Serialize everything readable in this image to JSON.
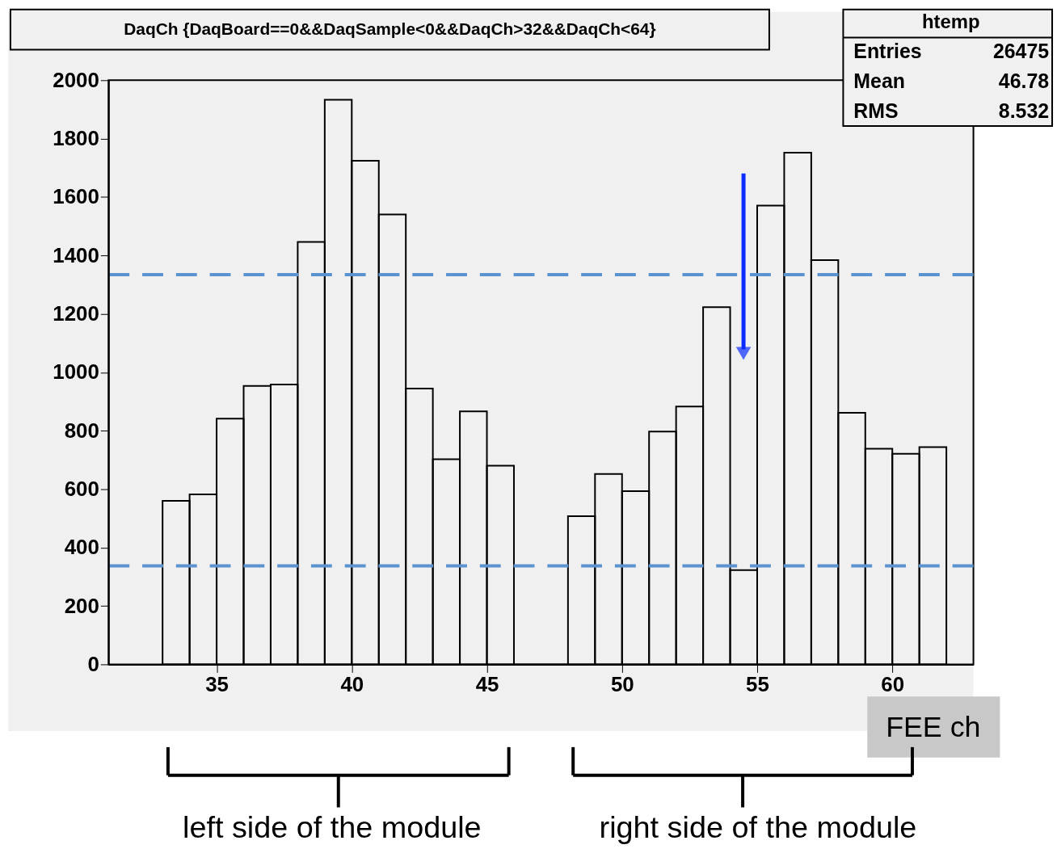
{
  "chart_data": {
    "type": "histogram",
    "title": "DaqCh {DaqBoard==0&&DaqSample<0&&DaqCh>32&&DaqCh<64}",
    "xlabel": "FEE ch",
    "bins": [
      33,
      34,
      35,
      36,
      37,
      38,
      39,
      40,
      41,
      42,
      43,
      44,
      45,
      46,
      47,
      48,
      49,
      50,
      51,
      52,
      53,
      54,
      55,
      56,
      57,
      58,
      59,
      60,
      61,
      62
    ],
    "values": [
      560,
      582,
      841,
      953,
      958,
      1446,
      1933,
      1724,
      1540,
      944,
      702,
      866,
      680,
      0,
      0,
      507,
      652,
      593,
      797,
      883,
      1223,
      323,
      1571,
      1752,
      1384,
      861,
      738,
      721,
      744
    ],
    "color": "#000000",
    "xlim": [
      31,
      63
    ],
    "xticks": [
      35,
      40,
      45,
      50,
      55,
      60
    ],
    "ylim": [
      0,
      2000
    ],
    "yticks": [
      0,
      200,
      400,
      600,
      800,
      1000,
      1200,
      1400,
      1600,
      1800,
      2000
    ],
    "grid": false,
    "ref_lines": [
      {
        "axis": "y",
        "value": 1334,
        "color": "#5b93d0",
        "line_style": "dashed"
      },
      {
        "axis": "y",
        "value": 337,
        "color": "#5b93d0",
        "line_style": "dashed"
      }
    ],
    "annotations": [
      "htemp",
      "Entries",
      "26475",
      "Mean",
      "46.78",
      "RMS",
      "8.532",
      "left side of the module",
      "right side of the module"
    ]
  }
}
